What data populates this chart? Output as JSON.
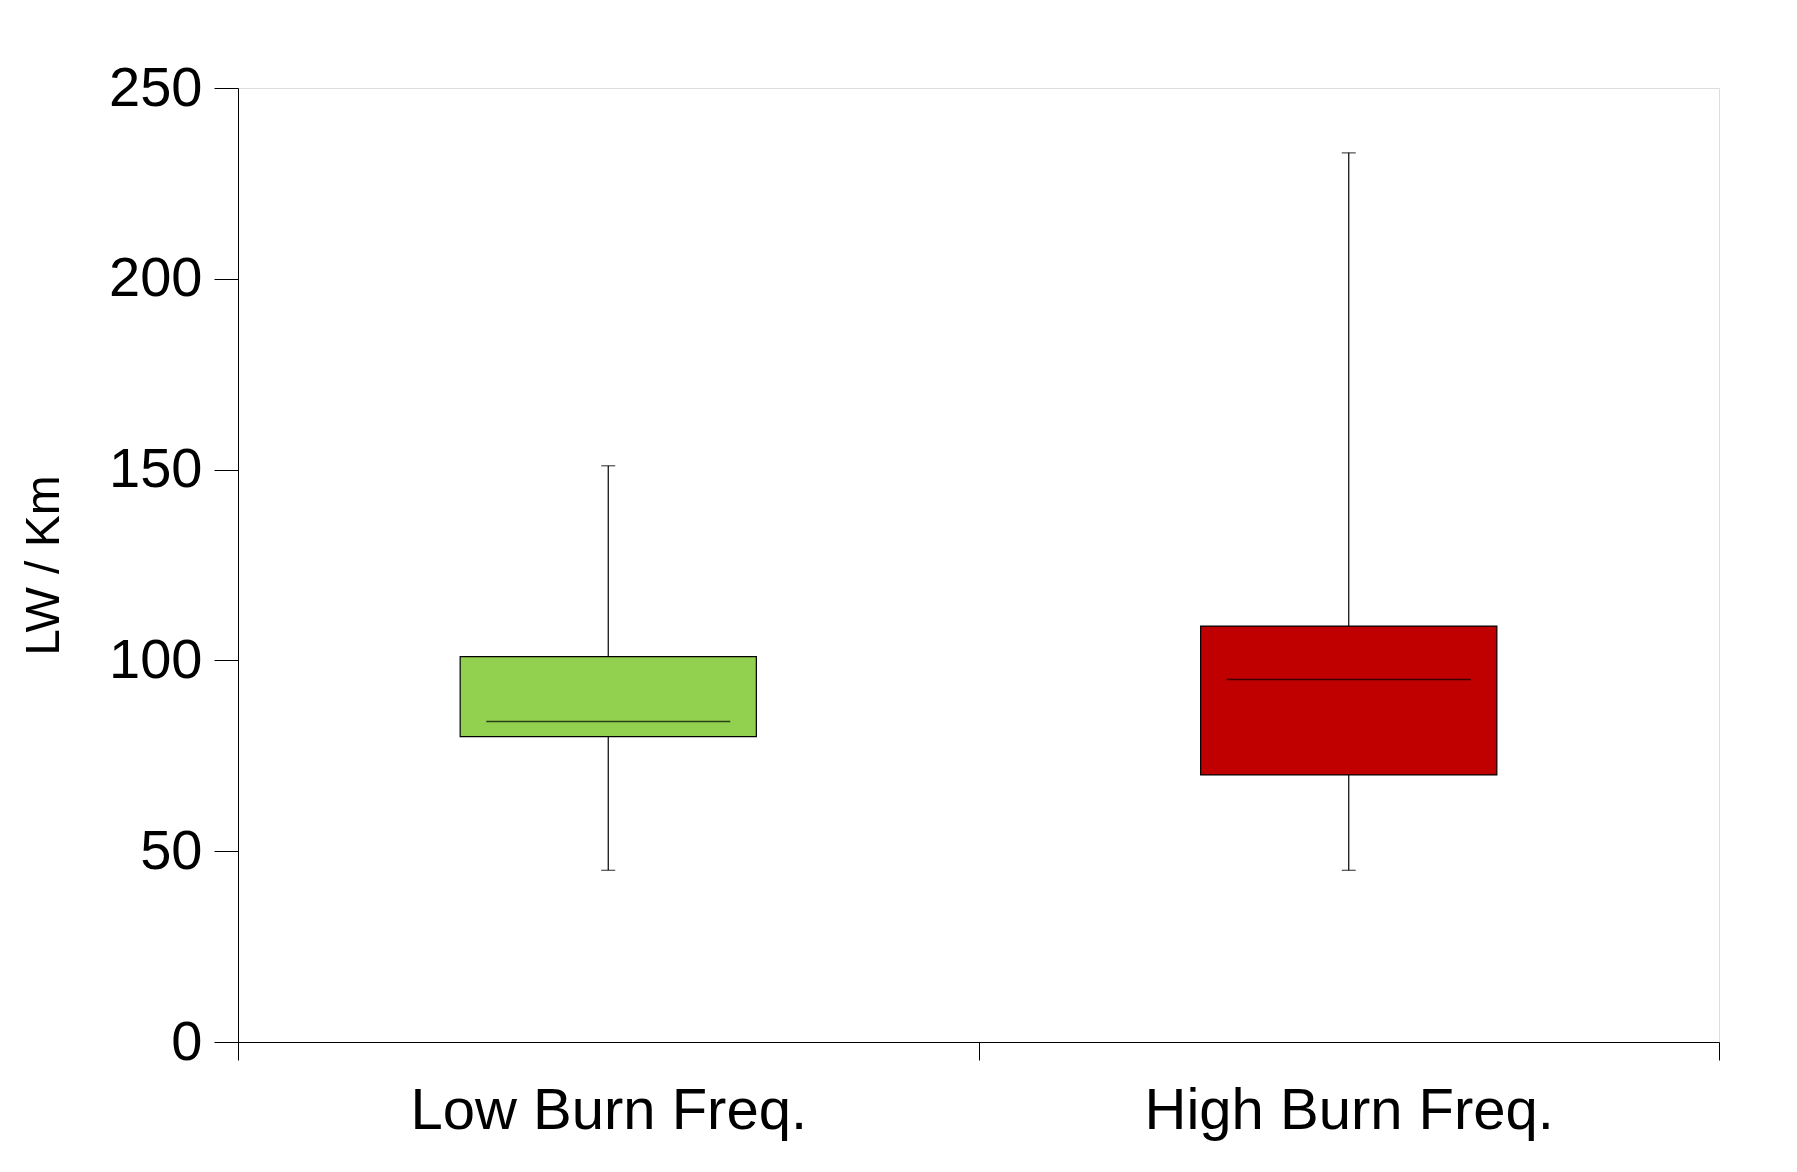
{
  "chart_data": {
    "type": "box",
    "ylabel": "LW / Km",
    "categories": [
      "Low Burn Freq.",
      "High Burn Freq."
    ],
    "boxes": [
      {
        "low": 45,
        "q1": 80,
        "median": 84,
        "q3": 101,
        "high": 151
      },
      {
        "low": 45,
        "q1": 70,
        "median": 95,
        "q3": 109,
        "high": 233
      }
    ],
    "colors": [
      "#92d050",
      "#c00000"
    ],
    "ylim": [
      0,
      250
    ],
    "yticks": [
      0,
      50,
      100,
      150,
      200,
      250
    ],
    "grid": false
  }
}
